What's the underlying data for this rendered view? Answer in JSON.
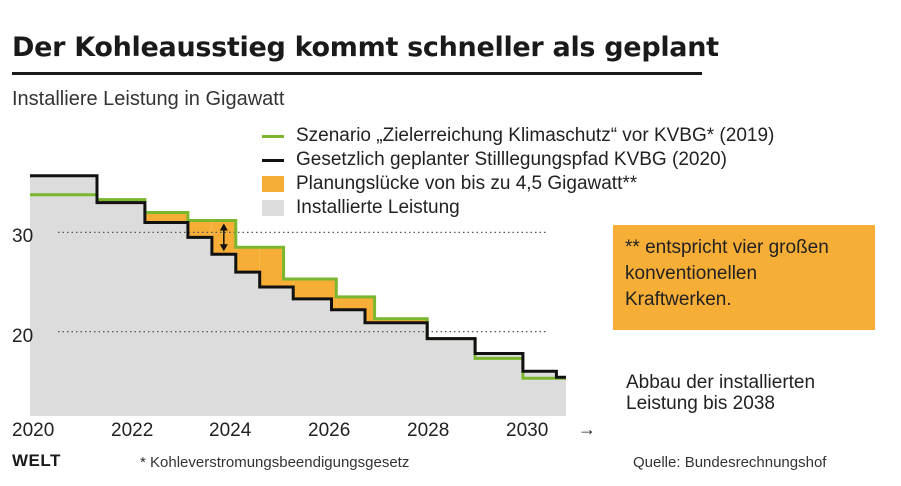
{
  "title": "Der Kohleausstieg kommt schneller als geplant",
  "subtitle": "Installiere Leistung in Gigawatt",
  "legend": [
    {
      "label": "Szenario „Zielerreichung Klimaschutz“ vor KVBG* (2019)",
      "kind": "line",
      "color": "#7ab72f"
    },
    {
      "label": "Gesetzlich geplanter Stilllegungspfad KVBG (2020)",
      "kind": "line",
      "color": "#111111"
    },
    {
      "label": "Planungslücke von bis zu 4,5 Gigawatt**",
      "kind": "box",
      "color": "#f6ae37"
    },
    {
      "label": "Installierte Leistung",
      "kind": "box",
      "color": "#dcdcdc"
    }
  ],
  "note": "** entspricht vier großen konventionellen Kraftwerken.",
  "abbau_text": "Abbau der installierten Leistung bis 2038",
  "arrow": "→",
  "footnote": "* Kohleverstromungsbeendigungsgesetz",
  "source": "Quelle: Bundesrechnungshof",
  "logo": "WELT",
  "chart_data": {
    "type": "line",
    "step": true,
    "title": "Der Kohleausstieg kommt schneller als geplant",
    "ylabel": "Installiere Leistung in Gigawatt",
    "xlim": [
      2019.5,
      2030.7
    ],
    "ylim": [
      11.5,
      38
    ],
    "yticks": [
      20,
      30
    ],
    "xticks": [
      2020,
      2022,
      2024,
      2026,
      2028,
      2030
    ],
    "grid": "dotted at y-ticks",
    "annotation": "Planungslücke von bis zu 4,5 Gigawatt",
    "series": [
      {
        "name": "Gesetzlich geplanter Stilllegungspfad KVBG (2020)",
        "color": "#111111",
        "x": [
          2019.5,
          2020.9,
          2021.9,
          2022.8,
          2023.3,
          2023.8,
          2024.3,
          2025.0,
          2025.8,
          2026.5,
          2026.9,
          2027.8,
          2028.8,
          2029.8,
          2030.5
        ],
        "y": [
          35.7,
          33.0,
          31.0,
          29.5,
          27.8,
          26.0,
          24.5,
          23.3,
          22.2,
          20.9,
          20.9,
          19.3,
          17.8,
          16.0,
          15.4
        ]
      },
      {
        "name": "Szenario „Zielerreichung Klimaschutz“ vor KVBG* (2019)",
        "color": "#7ab72f",
        "x": [
          2019.5,
          2020.9,
          2021.9,
          2022.8,
          2023.8,
          2024.8,
          2025.9,
          2026.7,
          2027.8,
          2028.8,
          2029.8,
          2030.5
        ],
        "y": [
          33.8,
          33.3,
          32.0,
          31.2,
          28.5,
          25.3,
          23.5,
          21.3,
          19.3,
          17.3,
          15.3,
          15.3
        ]
      }
    ]
  }
}
